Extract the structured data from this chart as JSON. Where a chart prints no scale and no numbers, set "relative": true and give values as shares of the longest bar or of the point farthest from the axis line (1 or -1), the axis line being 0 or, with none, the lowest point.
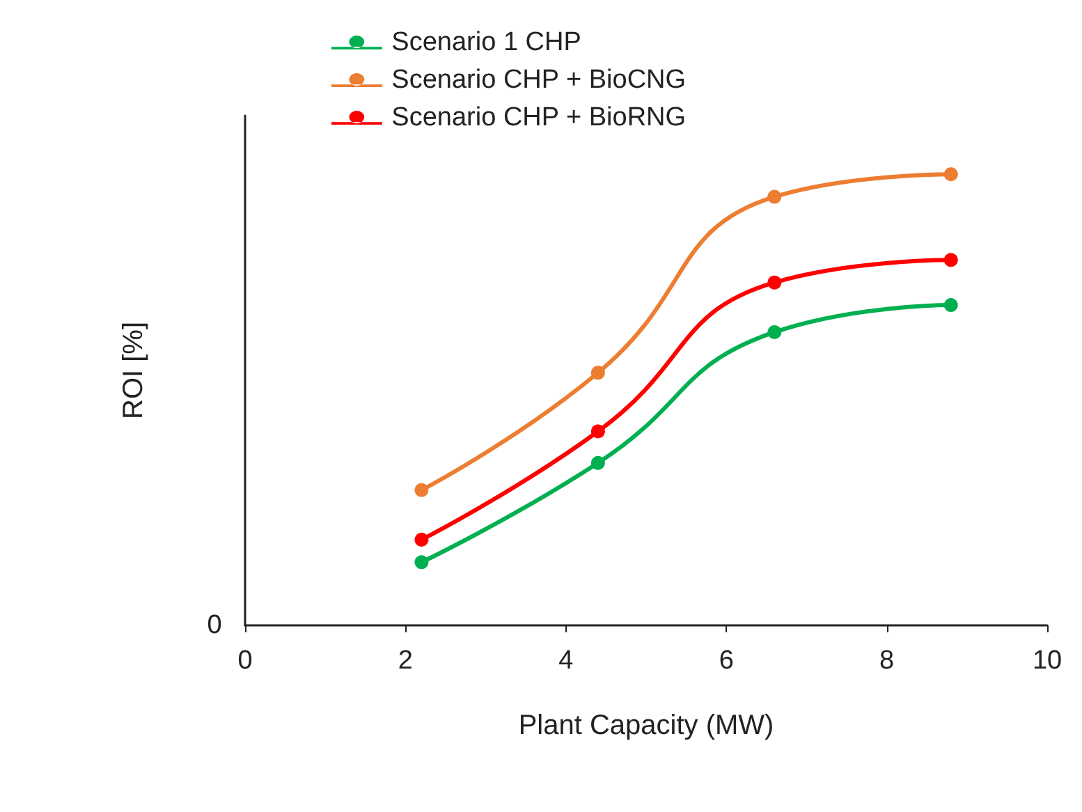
{
  "chart_data": {
    "type": "line",
    "relative": true,
    "xlabel": "Plant Capacity (MW)",
    "ylabel": "ROI [%]",
    "x": [
      2.2,
      4.4,
      6.6,
      8.8
    ],
    "xlim": [
      0,
      10
    ],
    "xticks": [
      0,
      2,
      4,
      6,
      8,
      10
    ],
    "legend": "top left",
    "marker": "circle",
    "line_style": "solid",
    "grid": false,
    "series": [
      {
        "name": "Scenario 1 CHP",
        "color": "#00b050",
        "values": [
          0.14,
          0.36,
          0.65,
          0.71
        ]
      },
      {
        "name": "Scenario CHP + BioCNG",
        "color": "#ed7d31",
        "values": [
          0.3,
          0.56,
          0.95,
          1
        ]
      },
      {
        "name": "Scenario CHP + BioRNG",
        "color": "#ff0000",
        "values": [
          0.19,
          0.43,
          0.76,
          0.81
        ]
      }
    ],
    "annotations": [
      "0"
    ]
  }
}
